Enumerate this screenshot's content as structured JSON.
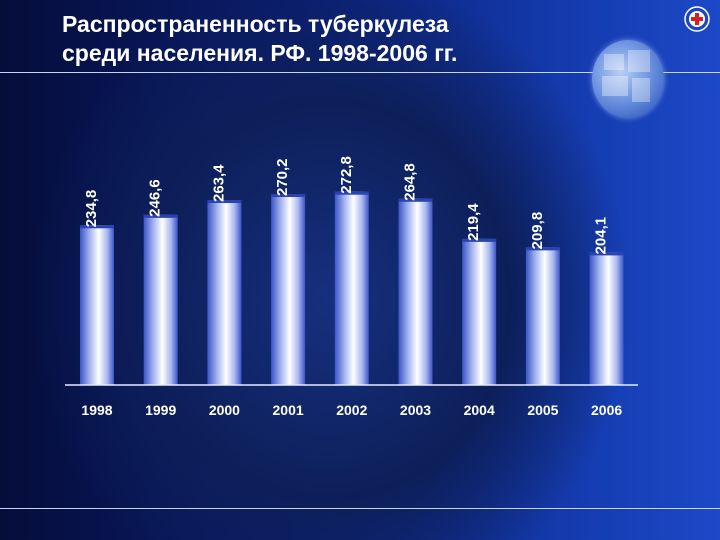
{
  "title": {
    "line1": "Распространенность туберкулеза",
    "line2": "среди населения. РФ. 1998-2006 гг."
  },
  "icons": {
    "logo": "medical-cross-logo-icon",
    "photo": "medical-photo-collage"
  },
  "colors": {
    "bar_light": "#ffffff",
    "bar_mid": "#a9b8f0",
    "bar_dark": "#3b55c9",
    "axis": "#e6ebff"
  },
  "chart_data": {
    "type": "bar",
    "title": "Распространенность туберкулеза среди населения. РФ. 1998-2006 гг.",
    "categories": [
      "1998",
      "1999",
      "2000",
      "2001",
      "2002",
      "2003",
      "2004",
      "2005",
      "2006"
    ],
    "values": [
      234.8,
      246.6,
      263.4,
      270.2,
      272.8,
      264.8,
      219.4,
      209.8,
      204.1
    ],
    "value_labels": [
      "234,8",
      "246,6",
      "263,4",
      "270,2",
      "272,8",
      "264,8",
      "219,4",
      "209,8",
      "204,1"
    ],
    "xlabel": "",
    "ylabel": "",
    "grid": false,
    "legend": "none"
  }
}
